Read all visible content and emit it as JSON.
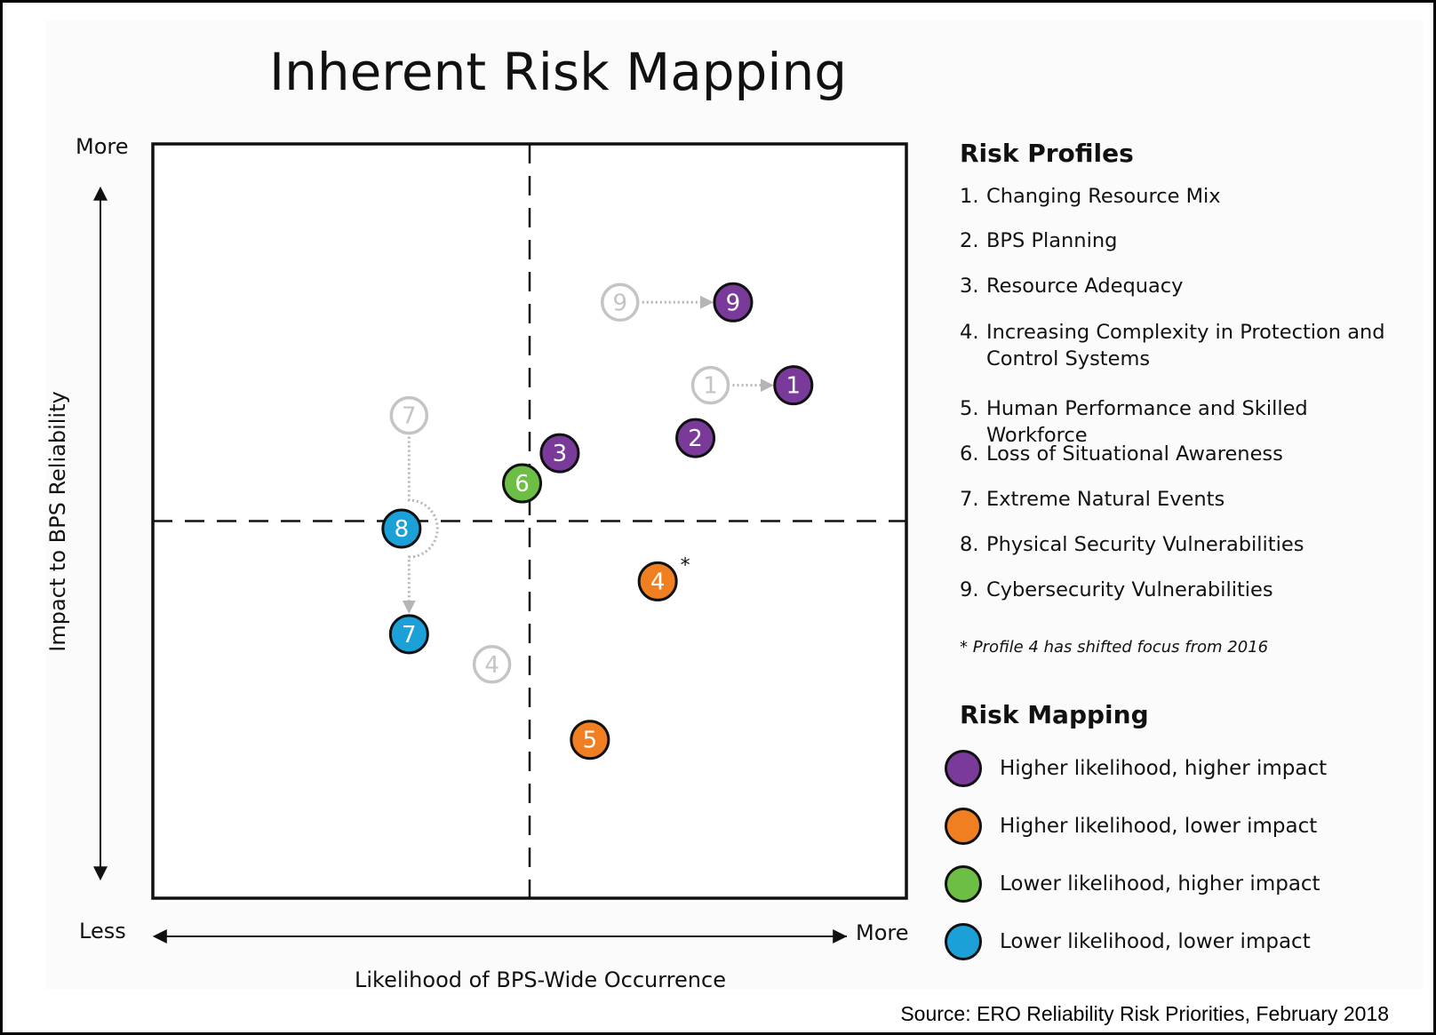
{
  "title": "Inherent Risk Mapping",
  "source": "Source: ERO Reliability Risk Priorities, February 2018",
  "chart_data": {
    "type": "scatter",
    "title": "Inherent Risk Mapping",
    "xlabel": "Likelihood of BPS-Wide Occurrence",
    "ylabel": "Impact to BPS Reliability",
    "x_axis": {
      "low": "",
      "high": "More"
    },
    "y_axis": {
      "low": "Less",
      "high": "More"
    },
    "xlim": [
      0,
      10
    ],
    "ylim": [
      0,
      10
    ],
    "quadrant_divider": {
      "x": 5,
      "y": 5
    },
    "grid": false,
    "points": [
      {
        "id": "1",
        "x": 8.5,
        "y": 6.8,
        "category": "higher-likelihood-higher-impact"
      },
      {
        "id": "2",
        "x": 7.2,
        "y": 6.1,
        "category": "higher-likelihood-higher-impact"
      },
      {
        "id": "3",
        "x": 5.4,
        "y": 5.9,
        "category": "higher-likelihood-higher-impact",
        "asterisk": false
      },
      {
        "id": "4",
        "x": 6.7,
        "y": 4.2,
        "category": "higher-likelihood-lower-impact",
        "asterisk": true
      },
      {
        "id": "5",
        "x": 5.8,
        "y": 2.1,
        "category": "higher-likelihood-lower-impact"
      },
      {
        "id": "6",
        "x": 4.9,
        "y": 5.5,
        "category": "lower-likelihood-higher-impact"
      },
      {
        "id": "7",
        "x": 3.4,
        "y": 3.5,
        "category": "lower-likelihood-lower-impact"
      },
      {
        "id": "8",
        "x": 3.3,
        "y": 4.9,
        "category": "lower-likelihood-lower-impact"
      },
      {
        "id": "9",
        "x": 7.7,
        "y": 7.9,
        "category": "higher-likelihood-higher-impact"
      }
    ],
    "previous_points": [
      {
        "id": "9",
        "x": 6.2,
        "y": 7.9,
        "moved_to": "9"
      },
      {
        "id": "1",
        "x": 7.4,
        "y": 6.8,
        "moved_to": "1"
      },
      {
        "id": "7",
        "x": 3.4,
        "y": 6.4,
        "moved_to": "7"
      },
      {
        "id": "4",
        "x": 4.5,
        "y": 3.1,
        "moved_to": null
      }
    ],
    "colors": {
      "higher-likelihood-higher-impact": "#7a3a9a",
      "higher-likelihood-lower-impact": "#f07f22",
      "lower-likelihood-higher-impact": "#6cbe45",
      "lower-likelihood-lower-impact": "#1ba0d8",
      "previous": "#c4c4c4"
    }
  },
  "risk_profiles": {
    "heading": "Risk Profiles",
    "items": [
      {
        "num": "1.",
        "text": "Changing Resource Mix"
      },
      {
        "num": "2.",
        "text": "BPS Planning"
      },
      {
        "num": "3.",
        "text": "Resource Adequacy"
      },
      {
        "num": "4.",
        "text": "Increasing Complexity in Protection and Control Systems"
      },
      {
        "num": "5.",
        "text": "Human Performance and Skilled Workforce"
      },
      {
        "num": "6.",
        "text": "Loss of Situational Awareness"
      },
      {
        "num": "7.",
        "text": "Extreme Natural Events"
      },
      {
        "num": "8.",
        "text": "Physical Security Vulnerabilities"
      },
      {
        "num": "9.",
        "text": "Cybersecurity Vulnerabilities"
      }
    ],
    "footnote": "* Profile 4 has shifted focus from 2016"
  },
  "risk_mapping": {
    "heading": "Risk Mapping",
    "items": [
      {
        "label": "Higher likelihood, higher impact",
        "color": "#7a3a9a"
      },
      {
        "label": "Higher likelihood, lower impact",
        "color": "#f07f22"
      },
      {
        "label": "Lower likelihood, higher impact",
        "color": "#6cbe45"
      },
      {
        "label": "Lower likelihood, lower impact",
        "color": "#1ba0d8"
      }
    ]
  }
}
